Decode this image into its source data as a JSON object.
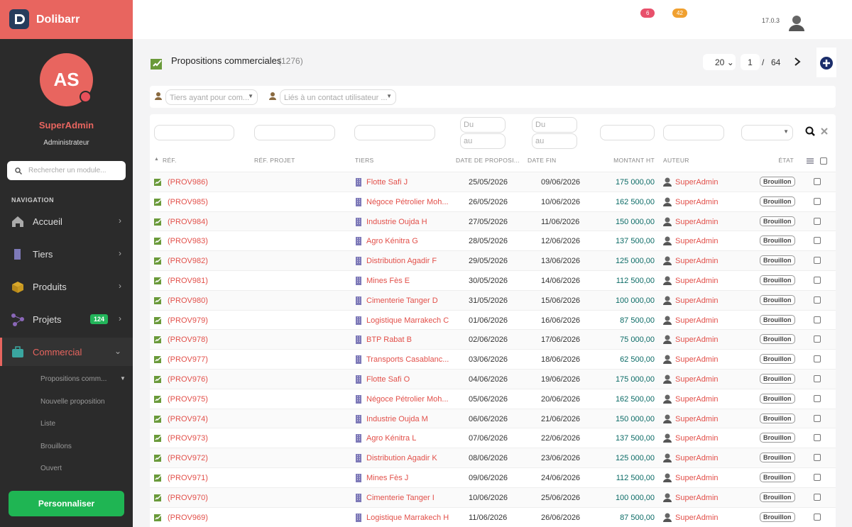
{
  "brand": "Dolibarr",
  "header": {
    "badge_red": "6",
    "badge_orange": "42",
    "version": "17.0.3"
  },
  "user": {
    "initials": "AS",
    "name": "SuperAdmin",
    "role": "Administrateur"
  },
  "search_placeholder": "Rechercher un module...",
  "nav_title": "NAVIGATION",
  "nav": [
    "Accueil",
    "Tiers",
    "Produits",
    "Projets",
    "Commercial"
  ],
  "nav_badge": "124",
  "submenu": [
    "Propositions comm...",
    "Nouvelle proposition",
    "Liste",
    "Brouillons",
    "Ouvert"
  ],
  "customize": "Personnaliser",
  "page": {
    "title": "Propositions commerciales",
    "count": "(1276)",
    "per_page": "20",
    "current": "1",
    "separator": "/",
    "total": "64"
  },
  "filters": {
    "thirdparty": "Tiers ayant pour com...",
    "contact": "Liés à un contact utilisateur ...",
    "date_from_1": "Du",
    "date_to_1": "au",
    "date_from_2": "Du",
    "date_to_2": "au"
  },
  "columns": [
    "RÉF.",
    "RÉF. PROJET",
    "TIERS",
    "DATE DE PROPOSI...",
    "DATE FIN",
    "MONTANT HT",
    "AUTEUR",
    "ÉTAT"
  ],
  "rows": [
    [
      "(PROV986)",
      "Flotte Safi J",
      "25/05/2026",
      "09/06/2026",
      "175 000,00",
      "SuperAdmin",
      "Brouillon"
    ],
    [
      "(PROV985)",
      "Négoce Pétrolier Moh...",
      "26/05/2026",
      "10/06/2026",
      "162 500,00",
      "SuperAdmin",
      "Brouillon"
    ],
    [
      "(PROV984)",
      "Industrie Oujda H",
      "27/05/2026",
      "11/06/2026",
      "150 000,00",
      "SuperAdmin",
      "Brouillon"
    ],
    [
      "(PROV983)",
      "Agro Kénitra G",
      "28/05/2026",
      "12/06/2026",
      "137 500,00",
      "SuperAdmin",
      "Brouillon"
    ],
    [
      "(PROV982)",
      "Distribution Agadir F",
      "29/05/2026",
      "13/06/2026",
      "125 000,00",
      "SuperAdmin",
      "Brouillon"
    ],
    [
      "(PROV981)",
      "Mines Fès E",
      "30/05/2026",
      "14/06/2026",
      "112 500,00",
      "SuperAdmin",
      "Brouillon"
    ],
    [
      "(PROV980)",
      "Cimenterie Tanger D",
      "31/05/2026",
      "15/06/2026",
      "100 000,00",
      "SuperAdmin",
      "Brouillon"
    ],
    [
      "(PROV979)",
      "Logistique Marrakech C",
      "01/06/2026",
      "16/06/2026",
      "87 500,00",
      "SuperAdmin",
      "Brouillon"
    ],
    [
      "(PROV978)",
      "BTP Rabat B",
      "02/06/2026",
      "17/06/2026",
      "75 000,00",
      "SuperAdmin",
      "Brouillon"
    ],
    [
      "(PROV977)",
      "Transports Casablanc...",
      "03/06/2026",
      "18/06/2026",
      "62 500,00",
      "SuperAdmin",
      "Brouillon"
    ],
    [
      "(PROV976)",
      "Flotte Safi O",
      "04/06/2026",
      "19/06/2026",
      "175 000,00",
      "SuperAdmin",
      "Brouillon"
    ],
    [
      "(PROV975)",
      "Négoce Pétrolier Moh...",
      "05/06/2026",
      "20/06/2026",
      "162 500,00",
      "SuperAdmin",
      "Brouillon"
    ],
    [
      "(PROV974)",
      "Industrie Oujda M",
      "06/06/2026",
      "21/06/2026",
      "150 000,00",
      "SuperAdmin",
      "Brouillon"
    ],
    [
      "(PROV973)",
      "Agro Kénitra L",
      "07/06/2026",
      "22/06/2026",
      "137 500,00",
      "SuperAdmin",
      "Brouillon"
    ],
    [
      "(PROV972)",
      "Distribution Agadir K",
      "08/06/2026",
      "23/06/2026",
      "125 000,00",
      "SuperAdmin",
      "Brouillon"
    ],
    [
      "(PROV971)",
      "Mines Fès J",
      "09/06/2026",
      "24/06/2026",
      "112 500,00",
      "SuperAdmin",
      "Brouillon"
    ],
    [
      "(PROV970)",
      "Cimenterie Tanger I",
      "10/06/2026",
      "25/06/2026",
      "100 000,00",
      "SuperAdmin",
      "Brouillon"
    ],
    [
      "(PROV969)",
      "Logistique Marrakech H",
      "11/06/2026",
      "26/06/2026",
      "87 500,00",
      "SuperAdmin",
      "Brouillon"
    ]
  ]
}
